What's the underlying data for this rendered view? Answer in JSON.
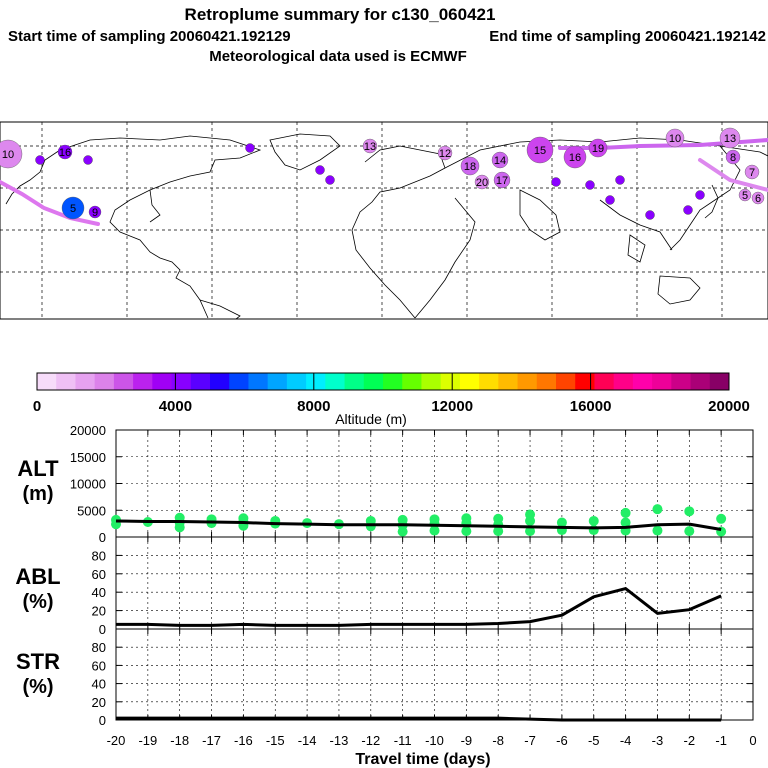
{
  "header": {
    "title": "Retroplume summary for c130_060421",
    "start_time": "Start time of sampling 20060421.192129",
    "end_time": "End time of sampling 20060421.192142",
    "met_data": "Meteorological data used is ECMWF"
  },
  "map": {
    "plume_points": [
      {
        "label": "10",
        "color": "#dd88ee"
      },
      {
        "label": "16",
        "color": "#8a00ff"
      },
      {
        "label": "13",
        "color": "#dd88ee"
      },
      {
        "label": "12",
        "color": "#dd88ee"
      },
      {
        "label": "18",
        "color": "#cc66ee"
      },
      {
        "label": "14",
        "color": "#cc66ee"
      },
      {
        "label": "20",
        "color": "#dd88ee"
      },
      {
        "label": "17",
        "color": "#cc66ee"
      },
      {
        "label": "15",
        "color": "#cc44ee"
      },
      {
        "label": "16",
        "color": "#cc44ee"
      },
      {
        "label": "19",
        "color": "#cc44ee"
      },
      {
        "label": "10",
        "color": "#dd88ee"
      },
      {
        "label": "13",
        "color": "#dd88ee"
      },
      {
        "label": "8",
        "color": "#cc66ee"
      },
      {
        "label": "7",
        "color": "#dd88ee"
      },
      {
        "label": "5",
        "color": "#dd88ee"
      },
      {
        "label": "6",
        "color": "#dd88ee"
      },
      {
        "label": "5",
        "color": "#0055ff"
      },
      {
        "label": "9",
        "color": "#8a00ff"
      }
    ]
  },
  "colorbar": {
    "colors": [
      "#f7dcfa",
      "#efc0f5",
      "#e6a2f0",
      "#dc82ea",
      "#cc55e8",
      "#bb22ee",
      "#a000f5",
      "#8800ff",
      "#5a00ff",
      "#2200ff",
      "#0044ff",
      "#0077ff",
      "#00a5ff",
      "#00ccff",
      "#00eeff",
      "#00ffcc",
      "#00ff88",
      "#00ff55",
      "#22ff22",
      "#66ff00",
      "#aaff00",
      "#ddff00",
      "#ffff00",
      "#ffdd00",
      "#ffbb00",
      "#ff9900",
      "#ff7700",
      "#ff4400",
      "#ff0000",
      "#ff0055",
      "#ff0088",
      "#ff00aa",
      "#ee0099",
      "#cc0088",
      "#aa0077",
      "#880066"
    ],
    "ticks": [
      "0",
      "4000",
      "8000",
      "12000",
      "16000",
      "20000"
    ],
    "label": "Altitude (m)"
  },
  "panels": {
    "alt": {
      "name": "ALT",
      "unit": "(m)",
      "yticks": [
        "20000",
        "15000",
        "10000",
        "5000",
        "0"
      ]
    },
    "abl": {
      "name": "ABL",
      "unit": "(%)",
      "yticks": [
        "80",
        "60",
        "40",
        "20",
        "0"
      ]
    },
    "str": {
      "name": "STR",
      "unit": "(%)",
      "yticks": [
        "80",
        "60",
        "40",
        "20",
        "0"
      ]
    }
  },
  "xaxis": {
    "ticks": [
      "-20",
      "-19",
      "-18",
      "-17",
      "-16",
      "-15",
      "-14",
      "-13",
      "-12",
      "-11",
      "-10",
      "-9",
      "-8",
      "-7",
      "-6",
      "-5",
      "-4",
      "-3",
      "-2",
      "-1",
      "0"
    ],
    "title": "Travel time (days)"
  },
  "chart_data": [
    {
      "type": "line",
      "title": "ALT",
      "xlabel": "Travel time (days)",
      "ylabel": "(m)",
      "xlim": [
        -20,
        0
      ],
      "ylim": [
        0,
        20000
      ],
      "series": [
        {
          "name": "mean altitude",
          "x": [
            -20,
            -19,
            -18,
            -17,
            -16,
            -15,
            -14,
            -13,
            -12,
            -11,
            -10,
            -9,
            -8,
            -7,
            -6,
            -5,
            -4,
            -3,
            -2,
            -1
          ],
          "values": [
            3000,
            2900,
            2900,
            2800,
            2700,
            2500,
            2400,
            2300,
            2300,
            2300,
            2200,
            2100,
            2000,
            1900,
            1800,
            1700,
            1800,
            2300,
            2400,
            1400
          ]
        }
      ],
      "scatter": {
        "name": "plume particles",
        "x": [
          -20,
          -20,
          -19,
          -18,
          -18,
          -18,
          -17,
          -17,
          -16,
          -16,
          -16,
          -15,
          -15,
          -14,
          -13,
          -12,
          -12,
          -11,
          -11,
          -11,
          -10,
          -10,
          -10,
          -9,
          -9,
          -9,
          -8,
          -8,
          -8,
          -7,
          -7,
          -7,
          -6,
          -6,
          -5,
          -5,
          -4,
          -4,
          -4,
          -3,
          -3,
          -2,
          -2,
          -1,
          -1
        ],
        "values": [
          3200,
          2400,
          2800,
          3600,
          2700,
          1800,
          3300,
          2600,
          3500,
          2900,
          2100,
          3000,
          2500,
          2600,
          2400,
          3000,
          2000,
          3200,
          2200,
          1000,
          3300,
          2500,
          1200,
          3500,
          2600,
          1100,
          3400,
          2300,
          1100,
          4200,
          3000,
          1100,
          2700,
          1300,
          3000,
          1300,
          4500,
          2700,
          1200,
          5200,
          1200,
          4800,
          1100,
          3400,
          1000
        ]
      }
    },
    {
      "type": "line",
      "title": "ABL",
      "xlabel": "Travel time (days)",
      "ylabel": "(%)",
      "xlim": [
        -20,
        0
      ],
      "ylim": [
        0,
        100
      ],
      "series": [
        {
          "name": "ABL fraction",
          "x": [
            -20,
            -19,
            -18,
            -17,
            -16,
            -15,
            -14,
            -13,
            -12,
            -11,
            -10,
            -9,
            -8,
            -7,
            -6,
            -5,
            -4,
            -3,
            -2,
            -1
          ],
          "values": [
            5,
            5,
            4,
            4,
            5,
            4,
            4,
            4,
            5,
            5,
            5,
            5,
            6,
            8,
            15,
            35,
            44,
            17,
            21,
            36
          ]
        }
      ]
    },
    {
      "type": "line",
      "title": "STR",
      "xlabel": "Travel time (days)",
      "ylabel": "(%)",
      "xlim": [
        -20,
        0
      ],
      "ylim": [
        0,
        100
      ],
      "series": [
        {
          "name": "STR fraction",
          "x": [
            -20,
            -19,
            -18,
            -17,
            -16,
            -15,
            -14,
            -13,
            -12,
            -11,
            -10,
            -9,
            -8,
            -7,
            -6,
            -5,
            -4,
            -3,
            -2,
            -1
          ],
          "values": [
            2,
            2,
            2,
            2,
            2,
            2,
            2,
            2,
            2,
            2,
            2,
            2,
            2,
            1,
            0,
            0,
            0,
            0,
            0,
            0
          ]
        }
      ]
    }
  ]
}
